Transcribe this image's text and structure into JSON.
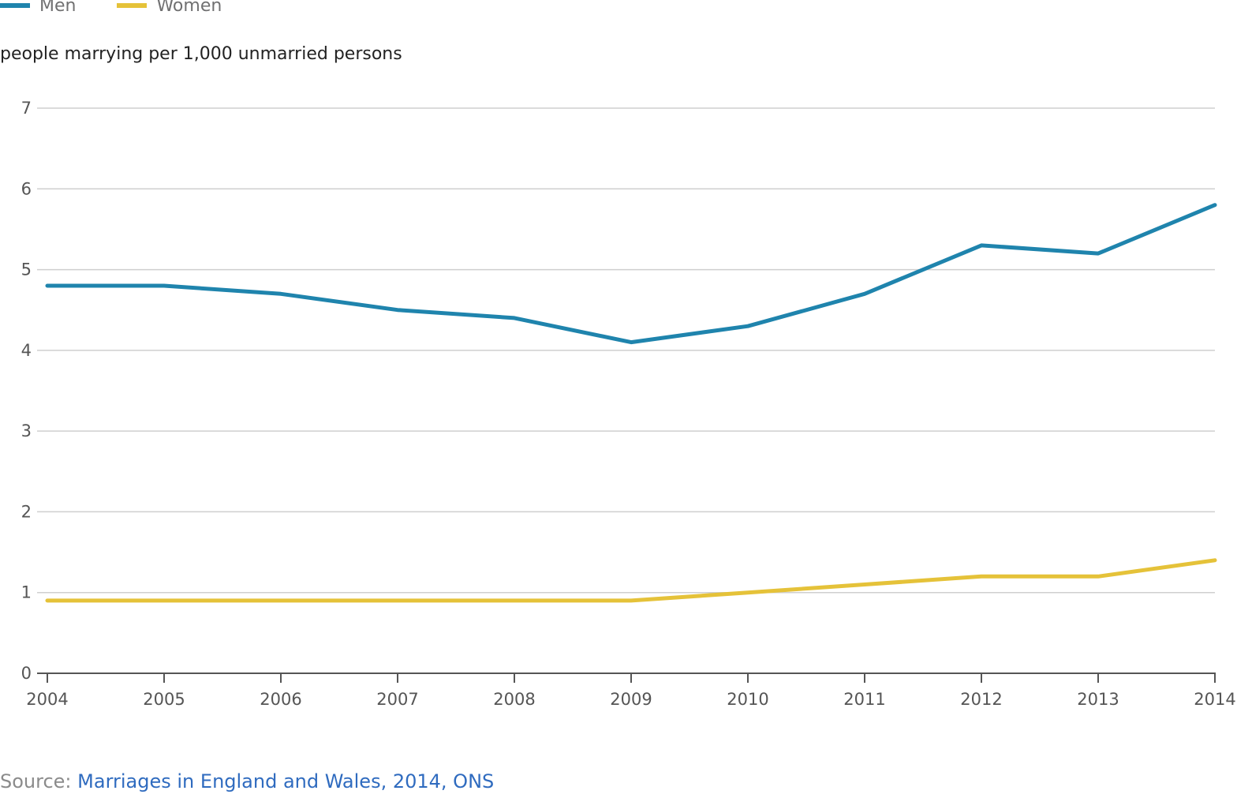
{
  "chart_data": {
    "type": "line",
    "ylabel": "people marrying per 1,000 unmarried persons",
    "x": [
      "2004",
      "2005",
      "2006",
      "2007",
      "2008",
      "2009",
      "2010",
      "2011",
      "2012",
      "2013",
      "2014"
    ],
    "ylim": [
      0,
      7
    ],
    "yticks": [
      "0",
      "1",
      "2",
      "3",
      "4",
      "5",
      "6",
      "7"
    ],
    "grid": true,
    "legend_position": "top-left",
    "series": [
      {
        "name": "Men",
        "color": "#1f84ad",
        "values": [
          4.8,
          4.8,
          4.7,
          4.5,
          4.4,
          4.1,
          4.3,
          4.7,
          5.3,
          5.2,
          5.8
        ]
      },
      {
        "name": "Women",
        "color": "#e5c239",
        "values": [
          0.9,
          0.9,
          0.9,
          0.9,
          0.9,
          0.9,
          1.0,
          1.1,
          1.2,
          1.2,
          1.4
        ]
      }
    ]
  },
  "source": {
    "prefix": "Source: ",
    "link_text": "Marriages in England and Wales, 2014, ONS"
  }
}
